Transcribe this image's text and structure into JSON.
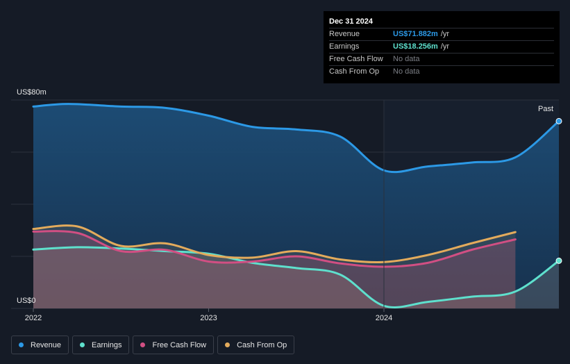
{
  "tooltip": {
    "date": "Dec 31 2024",
    "rows": [
      {
        "label": "Revenue",
        "value": "US$71.882m",
        "unit": "/yr",
        "color": "#2c99e6"
      },
      {
        "label": "Earnings",
        "value": "US$18.256m",
        "unit": "/yr",
        "color": "#5ee0cd"
      },
      {
        "label": "Free Cash Flow",
        "value": "No data",
        "unit": ""
      },
      {
        "label": "Cash From Op",
        "value": "No data",
        "unit": ""
      }
    ]
  },
  "legend": [
    {
      "label": "Revenue",
      "color": "#2c99e6"
    },
    {
      "label": "Earnings",
      "color": "#5ee0cd"
    },
    {
      "label": "Free Cash Flow",
      "color": "#d14f83"
    },
    {
      "label": "Cash From Op",
      "color": "#e3ab5c"
    }
  ],
  "chart_data": {
    "type": "area",
    "ylabel_top": "US$80m",
    "ylabel_bottom": "US$0",
    "ylim": [
      0,
      80
    ],
    "past_label": "Past",
    "x_ticks": [
      "2022",
      "2023",
      "2024"
    ],
    "x_tick_values": [
      2022.0,
      2023.0,
      2024.0
    ],
    "xlim": [
      2021.9,
      2025.0
    ],
    "series": [
      {
        "name": "Revenue",
        "color": "#2c99e6",
        "x": [
          2021.9,
          2022.2,
          2022.5,
          2022.75,
          2023.0,
          2023.25,
          2023.5,
          2023.75,
          2024.0,
          2024.25,
          2024.5,
          2024.75,
          2025.0
        ],
        "y": [
          77.5,
          78.5,
          77.5,
          77.0,
          74.0,
          69.7,
          68.7,
          66.0,
          53.0,
          54.5,
          56.0,
          58.0,
          71.9
        ]
      },
      {
        "name": "Earnings",
        "color": "#5ee0cd",
        "x": [
          2021.9,
          2022.25,
          2022.5,
          2022.75,
          2023.0,
          2023.25,
          2023.5,
          2023.75,
          2024.0,
          2024.25,
          2024.5,
          2024.75,
          2025.0
        ],
        "y": [
          22.6,
          23.5,
          23.0,
          22.0,
          21.0,
          17.5,
          15.5,
          13.0,
          1.0,
          2.5,
          4.5,
          6.5,
          18.3
        ]
      },
      {
        "name": "Free Cash Flow",
        "color": "#d14f83",
        "x": [
          2021.9,
          2022.25,
          2022.5,
          2022.75,
          2023.0,
          2023.25,
          2023.5,
          2023.75,
          2024.0,
          2024.25,
          2024.5,
          2024.75
        ],
        "y": [
          29.5,
          29.0,
          22.0,
          22.5,
          18.0,
          18.0,
          20.0,
          17.3,
          16.0,
          17.5,
          22.5,
          26.5
        ]
      },
      {
        "name": "Cash From Op",
        "color": "#e3ab5c",
        "x": [
          2021.9,
          2022.25,
          2022.5,
          2022.75,
          2023.0,
          2023.25,
          2023.5,
          2023.75,
          2024.0,
          2024.25,
          2024.5,
          2024.75
        ],
        "y": [
          30.5,
          31.5,
          24.0,
          25.0,
          20.5,
          19.5,
          22.0,
          18.8,
          17.8,
          20.5,
          25.0,
          29.3
        ]
      }
    ]
  }
}
